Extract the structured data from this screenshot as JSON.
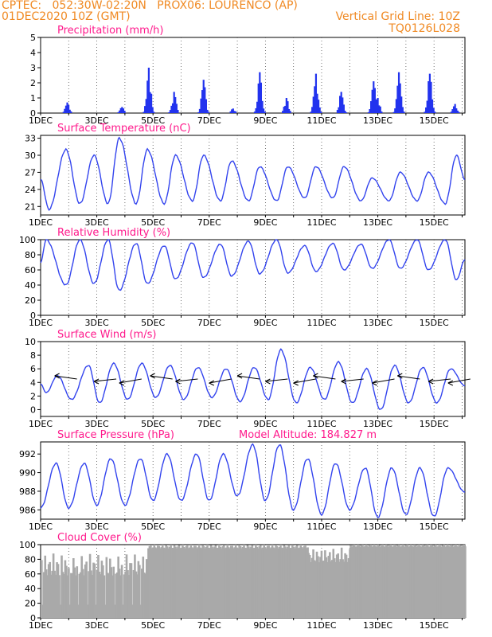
{
  "header": {
    "line1": "CPTEC:   052:30W-02:20N   PROX06: LOURENCO (AP)",
    "line2": "01DEC2020 10Z (GMT)",
    "vgrid": "Vertical Grid Line: 10Z",
    "code": "TQ0126L028"
  },
  "x_ticks": [
    "1DEC",
    "3DEC",
    "5DEC",
    "7DEC",
    "9DEC",
    "11DEC",
    "13DEC",
    "15DEC"
  ],
  "colors": {
    "line": "#3344ee",
    "bar": "#2233ee",
    "cloud": "#a9a9a9",
    "title": "#ff1a8c",
    "header": "#f08a24"
  },
  "chart_data": [
    {
      "type": "bar",
      "title": "Precipitation (mm/h)",
      "ylim": [
        0,
        5
      ],
      "yticks": [
        0,
        1,
        2,
        3,
        4,
        5
      ],
      "x_start_day": 1,
      "x_end_day": 16.1,
      "events": [
        {
          "day": 1.95,
          "peak": 0.7
        },
        {
          "day": 3.9,
          "peak": 0.4
        },
        {
          "day": 4.85,
          "peak": 3.0
        },
        {
          "day": 5.75,
          "peak": 1.4
        },
        {
          "day": 6.8,
          "peak": 2.2
        },
        {
          "day": 7.85,
          "peak": 0.3
        },
        {
          "day": 8.8,
          "peak": 2.7
        },
        {
          "day": 9.75,
          "peak": 1.0
        },
        {
          "day": 10.8,
          "peak": 2.6
        },
        {
          "day": 11.7,
          "peak": 1.4
        },
        {
          "day": 12.85,
          "peak": 2.1
        },
        {
          "day": 13.0,
          "peak": 1.0
        },
        {
          "day": 13.75,
          "peak": 2.7
        },
        {
          "day": 14.85,
          "peak": 2.6
        },
        {
          "day": 15.75,
          "peak": 0.6
        }
      ]
    },
    {
      "type": "line",
      "title": "Surface Temperature (nC)",
      "ylim": [
        19.5,
        33.5
      ],
      "yticks": [
        21,
        24,
        27,
        30,
        33
      ],
      "max_day": [
        1.9,
        2.9,
        3.8,
        4.8,
        5.8,
        6.8,
        7.8,
        8.8,
        9.8,
        10.8,
        11.8,
        12.8,
        13.8,
        14.8,
        15.8
      ],
      "max_val": [
        31,
        30,
        33,
        31,
        30,
        30,
        29,
        28,
        28,
        28,
        28,
        26,
        27,
        27,
        30
      ],
      "min_day": [
        1.3,
        2.4,
        3.4,
        4.4,
        5.4,
        6.4,
        7.4,
        8.4,
        9.4,
        10.4,
        11.4,
        12.4,
        13.4,
        14.4,
        15.4
      ],
      "min_val": [
        20.5,
        21.5,
        21.5,
        21.5,
        21.5,
        22,
        22,
        22,
        22,
        22.5,
        22.5,
        22,
        22,
        22,
        21.5
      ]
    },
    {
      "type": "line",
      "title": "Relative Humidity (%)",
      "ylim": [
        0,
        100
      ],
      "yticks": [
        0,
        20,
        40,
        60,
        80,
        100
      ],
      "max_day": [
        1.2,
        2.4,
        3.4,
        4.4,
        5.4,
        6.4,
        7.4,
        8.4,
        9.4,
        10.4,
        11.4,
        12.4,
        13.4,
        14.4,
        15.4
      ],
      "max_val": [
        100,
        100,
        100,
        95,
        92,
        96,
        94,
        98,
        100,
        92,
        95,
        94,
        100,
        100,
        100
      ],
      "min_day": [
        1.9,
        2.9,
        3.8,
        4.8,
        5.8,
        6.8,
        7.8,
        8.8,
        9.8,
        10.8,
        11.8,
        12.8,
        13.8,
        14.8,
        15.8
      ],
      "min_val": [
        40,
        42,
        33,
        42,
        48,
        50,
        52,
        55,
        56,
        58,
        60,
        62,
        62,
        60,
        47
      ]
    },
    {
      "type": "line",
      "title": "Surface Wind (m/s)",
      "ylim": [
        -1,
        10
      ],
      "yticks": [
        0,
        2,
        4,
        6,
        8,
        10
      ],
      "max_day": [
        1.6,
        2.7,
        3.6,
        4.6,
        5.6,
        6.6,
        7.6,
        8.6,
        9.55,
        10.6,
        11.6,
        12.6,
        13.6,
        14.6,
        15.6
      ],
      "max_val": [
        5,
        6.5,
        6.8,
        6.8,
        6.5,
        6.2,
        6.0,
        6.2,
        8.8,
        6.2,
        7.0,
        6.0,
        6.5,
        6.2,
        6.0
      ],
      "min_day": [
        1.2,
        2.1,
        3.1,
        4.1,
        5.1,
        6.1,
        7.1,
        8.1,
        9.1,
        10.1,
        11.1,
        12.1,
        13.1,
        14.1,
        15.1
      ],
      "min_val": [
        2.5,
        1.5,
        1.0,
        1.5,
        1.8,
        1.5,
        1.8,
        1.2,
        1.5,
        1.0,
        1.5,
        1.0,
        0.0,
        1.0,
        1.0
      ]
    },
    {
      "type": "line",
      "title": "Surface Pressure (hPa)",
      "ylim": [
        985,
        993.3
      ],
      "yticks": [
        986,
        988,
        990,
        992
      ],
      "max_day": [
        1.55,
        2.55,
        3.5,
        4.55,
        5.5,
        6.55,
        7.5,
        8.55,
        9.5,
        10.5,
        11.5,
        12.55,
        13.5,
        14.5,
        15.5
      ],
      "max_val": [
        991,
        991,
        991.5,
        991.5,
        992,
        992,
        992,
        993,
        993,
        991.5,
        991,
        990.5,
        990.5,
        990.5,
        990.5
      ],
      "min_day": [
        1.0,
        2.0,
        3.0,
        4.0,
        5.0,
        6.0,
        7.0,
        8.0,
        9.0,
        10.0,
        11.0,
        12.0,
        13.0,
        14.0,
        15.0
      ],
      "min_val": [
        986.2,
        986.2,
        986.5,
        986.5,
        987,
        987,
        987,
        987.5,
        987,
        986,
        985.5,
        986,
        985.2,
        985.5,
        985.3
      ],
      "annotation": "Model Altitude: 184.827 m"
    },
    {
      "type": "area",
      "title": "Cloud Cover (%)",
      "ylim": [
        0,
        100
      ],
      "yticks": [
        0,
        20,
        40,
        60,
        80,
        100
      ],
      "series": [
        {
          "from_day": 1.0,
          "to_day": 4.8,
          "level": 80,
          "jitter": 30
        },
        {
          "from_day": 4.8,
          "to_day": 10.5,
          "level": 93,
          "jitter": 6
        },
        {
          "from_day": 10.5,
          "to_day": 12.0,
          "level": 88,
          "jitter": 20
        },
        {
          "from_day": 12.0,
          "to_day": 16.1,
          "level": 94,
          "jitter": 5
        }
      ]
    }
  ],
  "arrow_row": {
    "y_value": 4.5,
    "days": [
      1.5,
      2.9,
      3.8,
      4.9,
      5.8,
      7.0,
      8.0,
      9.0,
      10.0,
      10.7,
      11.7,
      12.8,
      13.7,
      14.8,
      15.5
    ]
  }
}
